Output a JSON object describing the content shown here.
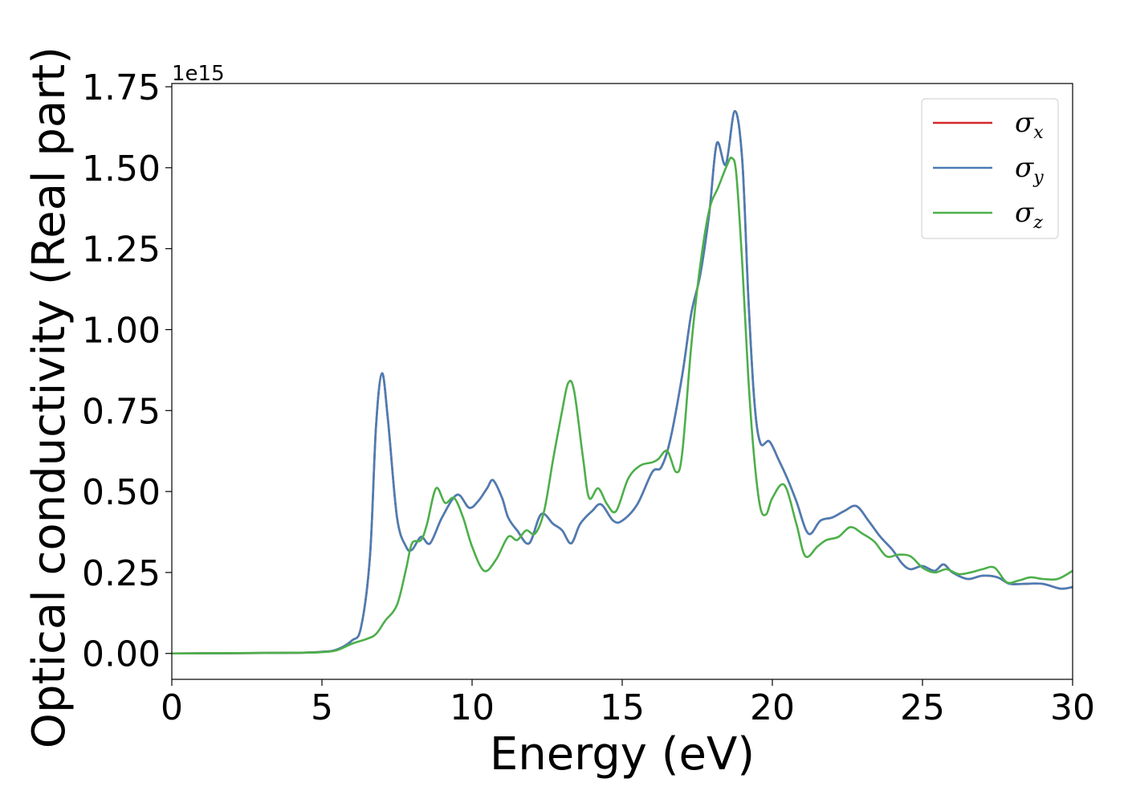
{
  "chart_data": {
    "type": "line",
    "title": "",
    "xlabel": "Energy (eV)",
    "ylabel": "Optical conductivity (Real part)",
    "y_offset_label": "1e15",
    "xlim": [
      0,
      30
    ],
    "ylim": [
      -0.08,
      1.76
    ],
    "x_ticks": [
      "0",
      "5",
      "10",
      "15",
      "20",
      "25",
      "30"
    ],
    "y_ticks": [
      "0.00",
      "0.25",
      "0.50",
      "0.75",
      "1.00",
      "1.25",
      "1.50",
      "1.75"
    ],
    "grid": false,
    "legend_position": "top-right",
    "series": [
      {
        "name": "σx",
        "label_main": "σ",
        "label_sub": "x",
        "color": "#d62728",
        "points": [
          [
            0,
            0
          ],
          [
            4,
            0.002
          ],
          [
            5,
            0.005
          ],
          [
            5.5,
            0.012
          ],
          [
            6,
            0.04
          ],
          [
            6.3,
            0.08
          ],
          [
            6.6,
            0.3
          ],
          [
            6.8,
            0.7
          ],
          [
            7,
            0.865
          ],
          [
            7.2,
            0.72
          ],
          [
            7.5,
            0.42
          ],
          [
            7.8,
            0.33
          ],
          [
            8,
            0.32
          ],
          [
            8.3,
            0.36
          ],
          [
            8.6,
            0.34
          ],
          [
            9,
            0.42
          ],
          [
            9.5,
            0.49
          ],
          [
            9.9,
            0.45
          ],
          [
            10.2,
            0.47
          ],
          [
            10.5,
            0.51
          ],
          [
            10.7,
            0.535
          ],
          [
            11,
            0.48
          ],
          [
            11.2,
            0.42
          ],
          [
            11.5,
            0.38
          ],
          [
            11.9,
            0.34
          ],
          [
            12.3,
            0.43
          ],
          [
            12.7,
            0.4
          ],
          [
            13,
            0.38
          ],
          [
            13.3,
            0.34
          ],
          [
            13.6,
            0.4
          ],
          [
            14,
            0.44
          ],
          [
            14.3,
            0.46
          ],
          [
            14.7,
            0.41
          ],
          [
            15,
            0.41
          ],
          [
            15.5,
            0.46
          ],
          [
            16,
            0.56
          ],
          [
            16.3,
            0.575
          ],
          [
            16.6,
            0.66
          ],
          [
            17,
            0.86
          ],
          [
            17.3,
            1.05
          ],
          [
            17.6,
            1.17
          ],
          [
            17.9,
            1.36
          ],
          [
            18.15,
            1.575
          ],
          [
            18.45,
            1.51
          ],
          [
            18.75,
            1.675
          ],
          [
            19,
            1.52
          ],
          [
            19.2,
            1.1
          ],
          [
            19.4,
            0.78
          ],
          [
            19.6,
            0.65
          ],
          [
            19.9,
            0.655
          ],
          [
            20.2,
            0.6
          ],
          [
            20.5,
            0.54
          ],
          [
            20.8,
            0.47
          ],
          [
            21.2,
            0.37
          ],
          [
            21.6,
            0.41
          ],
          [
            22,
            0.42
          ],
          [
            22.4,
            0.44
          ],
          [
            22.8,
            0.455
          ],
          [
            23.2,
            0.41
          ],
          [
            23.6,
            0.36
          ],
          [
            24,
            0.32
          ],
          [
            24.3,
            0.28
          ],
          [
            24.6,
            0.26
          ],
          [
            25,
            0.27
          ],
          [
            25.4,
            0.255
          ],
          [
            25.7,
            0.275
          ],
          [
            26,
            0.25
          ],
          [
            26.5,
            0.23
          ],
          [
            27,
            0.24
          ],
          [
            27.5,
            0.235
          ],
          [
            27.9,
            0.215
          ],
          [
            28.4,
            0.215
          ],
          [
            29,
            0.215
          ],
          [
            29.6,
            0.2
          ],
          [
            30,
            0.205
          ]
        ]
      },
      {
        "name": "σy",
        "label_main": "σ",
        "label_sub": "y",
        "color": "#4a7db5",
        "points": [
          [
            0,
            0
          ],
          [
            4,
            0.002
          ],
          [
            5,
            0.005
          ],
          [
            5.5,
            0.012
          ],
          [
            6,
            0.04
          ],
          [
            6.3,
            0.08
          ],
          [
            6.6,
            0.3
          ],
          [
            6.8,
            0.7
          ],
          [
            7,
            0.865
          ],
          [
            7.2,
            0.72
          ],
          [
            7.5,
            0.42
          ],
          [
            7.8,
            0.33
          ],
          [
            8,
            0.32
          ],
          [
            8.3,
            0.36
          ],
          [
            8.6,
            0.34
          ],
          [
            9,
            0.42
          ],
          [
            9.5,
            0.49
          ],
          [
            9.9,
            0.45
          ],
          [
            10.2,
            0.47
          ],
          [
            10.5,
            0.51
          ],
          [
            10.7,
            0.535
          ],
          [
            11,
            0.48
          ],
          [
            11.2,
            0.42
          ],
          [
            11.5,
            0.38
          ],
          [
            11.9,
            0.34
          ],
          [
            12.3,
            0.43
          ],
          [
            12.7,
            0.4
          ],
          [
            13,
            0.38
          ],
          [
            13.3,
            0.34
          ],
          [
            13.6,
            0.4
          ],
          [
            14,
            0.44
          ],
          [
            14.3,
            0.46
          ],
          [
            14.7,
            0.41
          ],
          [
            15,
            0.41
          ],
          [
            15.5,
            0.46
          ],
          [
            16,
            0.56
          ],
          [
            16.3,
            0.575
          ],
          [
            16.6,
            0.66
          ],
          [
            17,
            0.86
          ],
          [
            17.3,
            1.05
          ],
          [
            17.6,
            1.17
          ],
          [
            17.9,
            1.36
          ],
          [
            18.15,
            1.575
          ],
          [
            18.45,
            1.51
          ],
          [
            18.75,
            1.675
          ],
          [
            19,
            1.52
          ],
          [
            19.2,
            1.1
          ],
          [
            19.4,
            0.78
          ],
          [
            19.6,
            0.65
          ],
          [
            19.9,
            0.655
          ],
          [
            20.2,
            0.6
          ],
          [
            20.5,
            0.54
          ],
          [
            20.8,
            0.47
          ],
          [
            21.2,
            0.37
          ],
          [
            21.6,
            0.41
          ],
          [
            22,
            0.42
          ],
          [
            22.4,
            0.44
          ],
          [
            22.8,
            0.455
          ],
          [
            23.2,
            0.41
          ],
          [
            23.6,
            0.36
          ],
          [
            24,
            0.32
          ],
          [
            24.3,
            0.28
          ],
          [
            24.6,
            0.26
          ],
          [
            25,
            0.27
          ],
          [
            25.4,
            0.255
          ],
          [
            25.7,
            0.275
          ],
          [
            26,
            0.25
          ],
          [
            26.5,
            0.23
          ],
          [
            27,
            0.24
          ],
          [
            27.5,
            0.235
          ],
          [
            27.9,
            0.215
          ],
          [
            28.4,
            0.215
          ],
          [
            29,
            0.215
          ],
          [
            29.6,
            0.2
          ],
          [
            30,
            0.205
          ]
        ]
      },
      {
        "name": "σz",
        "label_main": "σ",
        "label_sub": "z",
        "color": "#4daf4a",
        "points": [
          [
            0,
            0
          ],
          [
            4,
            0.002
          ],
          [
            5,
            0.004
          ],
          [
            5.5,
            0.01
          ],
          [
            6,
            0.03
          ],
          [
            6.5,
            0.045
          ],
          [
            6.8,
            0.06
          ],
          [
            7.1,
            0.1
          ],
          [
            7.5,
            0.15
          ],
          [
            7.8,
            0.26
          ],
          [
            8,
            0.34
          ],
          [
            8.3,
            0.35
          ],
          [
            8.5,
            0.4
          ],
          [
            8.8,
            0.51
          ],
          [
            9.1,
            0.465
          ],
          [
            9.4,
            0.48
          ],
          [
            9.7,
            0.42
          ],
          [
            10,
            0.33
          ],
          [
            10.4,
            0.255
          ],
          [
            10.8,
            0.29
          ],
          [
            11.2,
            0.36
          ],
          [
            11.5,
            0.35
          ],
          [
            11.8,
            0.38
          ],
          [
            12.1,
            0.37
          ],
          [
            12.4,
            0.44
          ],
          [
            12.7,
            0.6
          ],
          [
            13,
            0.75
          ],
          [
            13.2,
            0.835
          ],
          [
            13.4,
            0.81
          ],
          [
            13.7,
            0.6
          ],
          [
            13.9,
            0.48
          ],
          [
            14.2,
            0.51
          ],
          [
            14.5,
            0.46
          ],
          [
            14.8,
            0.44
          ],
          [
            15.2,
            0.54
          ],
          [
            15.6,
            0.58
          ],
          [
            16,
            0.59
          ],
          [
            16.2,
            0.6
          ],
          [
            16.5,
            0.625
          ],
          [
            16.8,
            0.56
          ],
          [
            17,
            0.62
          ],
          [
            17.3,
            0.95
          ],
          [
            17.6,
            1.2
          ],
          [
            17.9,
            1.37
          ],
          [
            18.2,
            1.44
          ],
          [
            18.5,
            1.51
          ],
          [
            18.65,
            1.53
          ],
          [
            18.8,
            1.48
          ],
          [
            19,
            1.2
          ],
          [
            19.2,
            0.85
          ],
          [
            19.4,
            0.6
          ],
          [
            19.6,
            0.45
          ],
          [
            19.8,
            0.43
          ],
          [
            20,
            0.48
          ],
          [
            20.4,
            0.52
          ],
          [
            20.8,
            0.4
          ],
          [
            21.1,
            0.3
          ],
          [
            21.5,
            0.33
          ],
          [
            21.8,
            0.35
          ],
          [
            22.2,
            0.36
          ],
          [
            22.6,
            0.39
          ],
          [
            23,
            0.37
          ],
          [
            23.4,
            0.345
          ],
          [
            23.8,
            0.3
          ],
          [
            24.2,
            0.305
          ],
          [
            24.6,
            0.3
          ],
          [
            25,
            0.265
          ],
          [
            25.4,
            0.25
          ],
          [
            25.8,
            0.26
          ],
          [
            26.2,
            0.245
          ],
          [
            26.6,
            0.25
          ],
          [
            27,
            0.26
          ],
          [
            27.4,
            0.265
          ],
          [
            27.8,
            0.22
          ],
          [
            28.2,
            0.225
          ],
          [
            28.6,
            0.235
          ],
          [
            29,
            0.23
          ],
          [
            29.5,
            0.23
          ],
          [
            30,
            0.255
          ]
        ]
      }
    ]
  }
}
